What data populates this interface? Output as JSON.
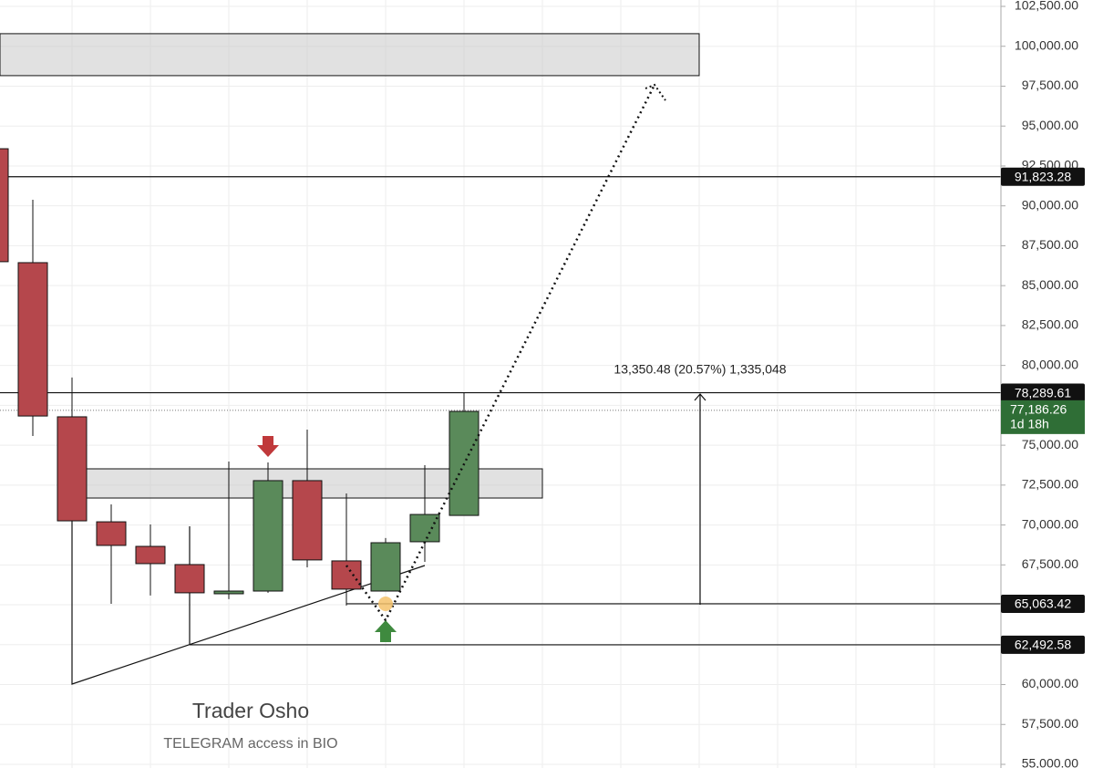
{
  "chart_data": {
    "type": "candlestick",
    "open": [
      93580,
      86440,
      76780,
      70200,
      68660,
      67520,
      65690,
      65860,
      72780,
      67750,
      65860,
      68950,
      70600
    ],
    "high": [
      93580,
      90380,
      79240,
      71290,
      70030,
      69920,
      73980,
      73920,
      75980,
      71980,
      69180,
      73750,
      78320
    ],
    "low": [
      86500,
      75580,
      60030,
      65060,
      65580,
      62490,
      65350,
      65750,
      67350,
      64950,
      65860,
      67690,
      70600
    ],
    "close": [
      86500,
      76830,
      70260,
      68720,
      67580,
      65750,
      65860,
      72780,
      67810,
      65980,
      68890,
      70660,
      77120
    ],
    "up_color": "#5a8a5a",
    "down_color": "#b5474c",
    "ylim": [
      55000,
      102500
    ],
    "yticks": [
      {
        "value": 55000,
        "label": "55,000.00"
      },
      {
        "value": 57500,
        "label": "57,500.00"
      },
      {
        "value": 60000,
        "label": "60,000.00"
      },
      {
        "value": 62500,
        "label": "62,500.00"
      },
      {
        "value": 65000,
        "label": "65,000.00"
      },
      {
        "value": 67500,
        "label": "67,500.00"
      },
      {
        "value": 70000,
        "label": "70,000.00"
      },
      {
        "value": 72500,
        "label": "72,500.00"
      },
      {
        "value": 75000,
        "label": "75,000.00"
      },
      {
        "value": 77500,
        "label": "77,500.00"
      },
      {
        "value": 80000,
        "label": "80,000.00"
      },
      {
        "value": 82500,
        "label": "82,500.00"
      },
      {
        "value": 85000,
        "label": "85,000.00"
      },
      {
        "value": 87500,
        "label": "87,500.00"
      },
      {
        "value": 90000,
        "label": "90,000.00"
      },
      {
        "value": 92500,
        "label": "92,500.00"
      },
      {
        "value": 95000,
        "label": "95,000.00"
      },
      {
        "value": 97500,
        "label": "97,500.00"
      },
      {
        "value": 100000,
        "label": "100,000.00"
      },
      {
        "value": 102500,
        "label": "102,500.00"
      }
    ],
    "grid": true,
    "levels": [
      {
        "value": 91823.28,
        "label": "91,823.28"
      },
      {
        "value": 78289.61,
        "label": "78,289.61"
      },
      {
        "value": 65063.42,
        "label": "65,063.42"
      },
      {
        "value": 62492.58,
        "label": "62,492.58"
      }
    ],
    "zones": [
      {
        "high": 100790,
        "low": 98160
      },
      {
        "high": 73520,
        "low": 71690
      }
    ],
    "last_price": {
      "value": 77186.26,
      "label": "77,186.26"
    },
    "countdown": "1d 18h",
    "measure_label": "13,350.48 (20.57%) 1,335,048",
    "watermark_title": "Trader Osho",
    "watermark_subtitle": "TELEGRAM access in BIO"
  }
}
